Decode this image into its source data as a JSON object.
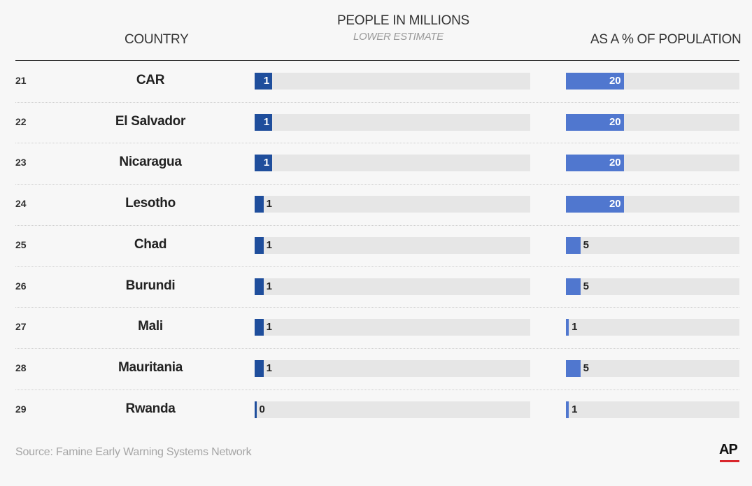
{
  "headers": {
    "country": "COUNTRY",
    "people": "PEOPLE IN MILLIONS",
    "people_sub": "LOWER ESTIMATE",
    "pct": "AS A % OF POPULATION"
  },
  "footer": {
    "source": "Source: Famine Early Warning Systems Network",
    "logo": "AP"
  },
  "colors": {
    "people_bar": "#1f4e9c",
    "pct_bar": "#5077cf",
    "track": "#e6e6e6"
  },
  "chart_data": {
    "type": "bar",
    "orientation": "horizontal",
    "categories": [
      "CAR",
      "El Salvador",
      "Nicaragua",
      "Lesotho",
      "Chad",
      "Burundi",
      "Mali",
      "Mauritania",
      "Rwanda"
    ],
    "ranks": [
      "21",
      "22",
      "23",
      "24",
      "25",
      "26",
      "27",
      "28",
      "29"
    ],
    "series": [
      {
        "name": "PEOPLE IN MILLIONS",
        "values": [
          1.0,
          1.0,
          1.0,
          0.5,
          0.5,
          0.5,
          0.5,
          0.5,
          0.1
        ],
        "labels": [
          "1",
          "1",
          "1",
          "1",
          "1",
          "1",
          "1",
          "1",
          "0"
        ],
        "xlim": [
          0,
          15.6
        ]
      },
      {
        "name": "AS A % OF POPULATION",
        "values": [
          20,
          20,
          20,
          20,
          5,
          5,
          1,
          5,
          1
        ],
        "labels": [
          "20",
          "20",
          "20",
          "20",
          "5",
          "5",
          "1",
          "5",
          "1"
        ],
        "xlim": [
          0,
          60
        ]
      }
    ],
    "grid": false,
    "legend": "none"
  }
}
